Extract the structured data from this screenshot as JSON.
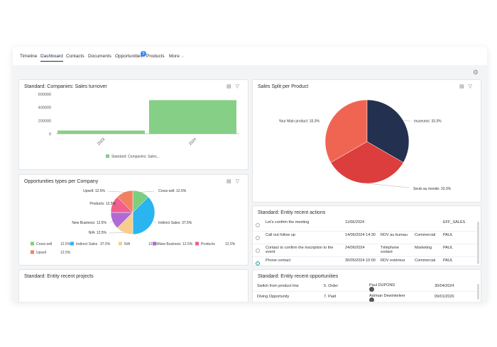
{
  "tabs": [
    {
      "label": "Timeline"
    },
    {
      "label": "Dashboard"
    },
    {
      "label": "Contacts"
    },
    {
      "label": "Documents"
    },
    {
      "label": "Opportunities",
      "badge": "3"
    },
    {
      "label": "Products"
    },
    {
      "label": "More"
    }
  ],
  "panels": {
    "turnover": {
      "title": "Standard: Companies: Sales turnover"
    },
    "split": {
      "title": "Sales Split per Product"
    },
    "opptypes": {
      "title": "Opportunities types per Company"
    },
    "actions": {
      "title": "Standard: Entity recent actions"
    },
    "projects": {
      "title": "Standard: Entity recent projects"
    },
    "recentopps": {
      "title": "Standard: Entity recent opportunities"
    }
  },
  "chart_data": [
    {
      "type": "bar",
      "categories": [
        "2023",
        "2024"
      ],
      "values": [
        50000,
        510000
      ],
      "yticks": [
        "600000",
        "400000",
        "200000",
        "0"
      ],
      "ylim": [
        0,
        600000
      ],
      "series": [
        {
          "name": "Standard: Companies: Sales...",
          "color": "#86cf86"
        }
      ]
    },
    {
      "type": "pie",
      "labels": [
        "Your Main product: 33.3%",
        "museums: 33.3%",
        "Seuls au monde: 33.3%"
      ],
      "values": [
        33.3,
        33.3,
        33.3
      ],
      "colors": [
        "#f06552",
        "#233050",
        "#dc3d3d"
      ]
    },
    {
      "type": "pie",
      "labels": [
        "Cross-sell: 12.5%",
        "Indirect Sales: 37.5%",
        "N/A: 12.5%",
        "New Business: 12.5%",
        "Products: 12.5%",
        "Upsell: 12.5%"
      ],
      "values": [
        12.5,
        37.5,
        12.5,
        12.5,
        12.5,
        12.5
      ],
      "colors": [
        "#7bcf7f",
        "#2ab5f0",
        "#f8cd8c",
        "#b06ad6",
        "#f25e8c",
        "#f28060"
      ],
      "legend": [
        {
          "name": "Cross-sell",
          "value": "12.5%"
        },
        {
          "name": "Indirect Sales",
          "value": "37.5%"
        },
        {
          "name": "N/A",
          "value": "12.5%"
        },
        {
          "name": "New Business",
          "value": "12.5%"
        },
        {
          "name": "Products",
          "value": "12.5%"
        },
        {
          "name": "Upsell",
          "value": "12.5%"
        }
      ]
    }
  ],
  "actions": [
    {
      "title": "Let's confirm the meeting",
      "date": "11/06/2024",
      "type": "",
      "dept": "",
      "user": "EFF_SALES",
      "done": false
    },
    {
      "title": "Call out follow up",
      "date": "14/06/2024 14:30",
      "type": "RDV au bureau",
      "dept": "Commercial",
      "user": "PAUL",
      "done": false
    },
    {
      "title": "Contact to confirm the inscription to the event",
      "date": "24/06/2024",
      "type": "Téléphone sortant",
      "dept": "Marketing",
      "user": "PAUL",
      "done": false
    },
    {
      "title": "Phone contact",
      "date": "30/05/2024 10:00",
      "type": "RDV extérieur",
      "dept": "Commercial",
      "user": "PAUL",
      "done": true
    }
  ],
  "opportunities": [
    {
      "name": "Switch from product line",
      "stage": "5. Order",
      "owner": "Paul DUPOND",
      "date": "30/04/2024"
    },
    {
      "name": "Diving Opportunity",
      "stage": "7. Paid",
      "owner": "Adrinan Dewinkeleer",
      "date": "09/01/2026"
    }
  ]
}
